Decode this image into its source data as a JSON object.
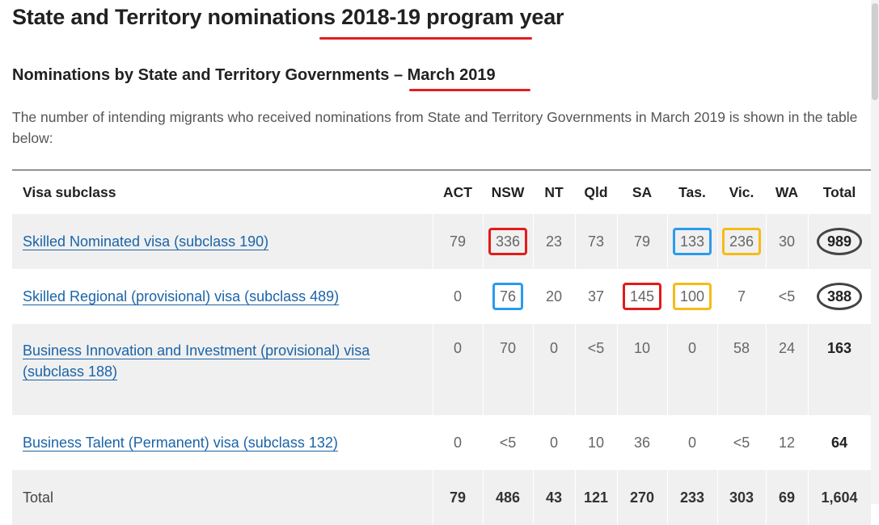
{
  "heading": "State and Territory nominations 2018-19 program year",
  "subheading": "Nominations by State and Territory Governments – March 2019",
  "intro": "The number of intending migrants who received nominations from State and Territory Governments in March 2019 is shown in the table below:",
  "annotation_colors": {
    "underline": "#e51d1d",
    "red_box": "#e21b1b",
    "blue_box": "#2a9bef",
    "gold_box": "#f6bb15",
    "oval": "#444444"
  },
  "table": {
    "headers": [
      "Visa subclass",
      "ACT",
      "NSW",
      "NT",
      "Qld",
      "SA",
      "Tas.",
      "Vic.",
      "WA",
      "Total"
    ],
    "rows": [
      {
        "label": "Skilled Nominated visa (subclass 190)",
        "values": [
          "79",
          "336",
          "23",
          "73",
          "79",
          "133",
          "236",
          "30",
          "989"
        ]
      },
      {
        "label": "Skilled Regional (provisional) visa (subclass 489)",
        "values": [
          "0",
          "76",
          "20",
          "37",
          "145",
          "100",
          "7",
          "<5",
          "388"
        ]
      },
      {
        "label": "Business Innovation and Investment (provisional) visa (subclass 188)",
        "values": [
          "0",
          "70",
          "0",
          "<5",
          "10",
          "0",
          "58",
          "24",
          "163"
        ]
      },
      {
        "label": "Business Talent (Permanent) visa (subclass 132)",
        "values": [
          "0",
          "<5",
          "0",
          "10",
          "36",
          "0",
          "<5",
          "12",
          "64"
        ]
      }
    ],
    "total_row": {
      "label": "Total",
      "values": [
        "79",
        "486",
        "43",
        "121",
        "270",
        "233",
        "303",
        "69",
        "1,604"
      ]
    }
  }
}
